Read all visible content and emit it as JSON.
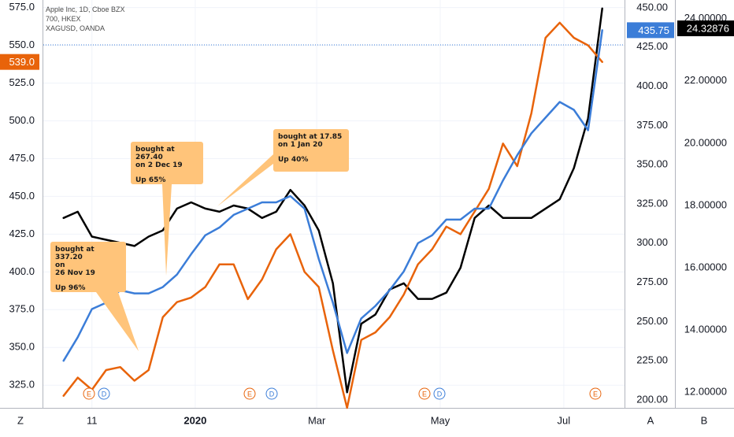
{
  "legend": {
    "line1": "Apple Inc, 1D, Cboe BZX",
    "line2": "700, HKEX",
    "line3": "XAGUSD, OANDA"
  },
  "colors": {
    "apple": "#e8630a",
    "hk700": "#3b7dd8",
    "xagusd": "#000000",
    "callout_bg": "#ffc47a"
  },
  "left_axis": {
    "ticks": [
      "575.0",
      "550.0",
      "525.0",
      "500.0",
      "475.0",
      "450.0",
      "425.0",
      "400.0",
      "375.0",
      "350.0",
      "325.0"
    ],
    "last_label": "539.0"
  },
  "mid_axis": {
    "ticks": [
      "450.00",
      "425.00",
      "400.00",
      "375.00",
      "350.00",
      "325.00",
      "300.00",
      "275.00",
      "250.00",
      "225.00",
      "200.00"
    ],
    "last_label": "435.75"
  },
  "right_axis": {
    "ticks": [
      "24.00000",
      "22.00000",
      "20.00000",
      "18.00000",
      "16.00000",
      "14.00000",
      "12.00000"
    ],
    "last_label": "24.32876"
  },
  "x_axis": {
    "labels": [
      "11",
      "2020",
      "Mar",
      "May",
      "Jul"
    ]
  },
  "bottom_buttons": {
    "left": "Z",
    "mid": "A",
    "right": "B"
  },
  "event_markers": [
    "E",
    "D",
    "E",
    "D",
    "E",
    "D",
    "E"
  ],
  "callouts": [
    {
      "line1": "bought at 337.20",
      "line2": "on",
      "line3": "26 Nov 19",
      "up": "Up 96%"
    },
    {
      "line1": "bought at 267.40",
      "line2": "on 2 Dec 19",
      "line3": "",
      "up": "Up 65%"
    },
    {
      "line1": "bought at 17.85",
      "line2": "on 1 Jan 20",
      "line3": "",
      "up": "Up 40%"
    }
  ],
  "chart_data": {
    "type": "line",
    "series": [
      {
        "name": "Apple Inc",
        "axis": "left",
        "x": [
          "2019-10-28",
          "2019-11-04",
          "2019-11-11",
          "2019-11-18",
          "2019-11-25",
          "2019-12-02",
          "2019-12-09",
          "2019-12-16",
          "2019-12-23",
          "2019-12-30",
          "2020-01-06",
          "2020-01-13",
          "2020-01-20",
          "2020-01-27",
          "2020-02-03",
          "2020-02-10",
          "2020-02-17",
          "2020-02-24",
          "2020-03-02",
          "2020-03-09",
          "2020-03-16",
          "2020-03-23",
          "2020-03-30",
          "2020-04-06",
          "2020-04-13",
          "2020-04-20",
          "2020-04-27",
          "2020-05-04",
          "2020-05-11",
          "2020-05-18",
          "2020-05-25",
          "2020-06-01",
          "2020-06-08",
          "2020-06-15",
          "2020-06-22",
          "2020-06-29",
          "2020-07-06",
          "2020-07-13",
          "2020-07-20"
        ],
        "values": [
          318,
          330,
          322,
          335,
          337,
          328,
          335,
          370,
          380,
          383,
          390,
          405,
          405,
          382,
          395,
          415,
          425,
          400,
          390,
          348,
          310,
          355,
          360,
          370,
          385,
          405,
          415,
          430,
          425,
          440,
          455,
          485,
          470,
          505,
          555,
          565,
          555,
          550,
          539
        ]
      },
      {
        "name": "700, HKEX",
        "axis": "mid",
        "x": [
          "2019-10-28",
          "2019-11-04",
          "2019-11-11",
          "2019-11-18",
          "2019-11-25",
          "2019-12-02",
          "2019-12-09",
          "2019-12-16",
          "2019-12-23",
          "2019-12-30",
          "2020-01-06",
          "2020-01-13",
          "2020-01-20",
          "2020-01-27",
          "2020-02-03",
          "2020-02-10",
          "2020-02-17",
          "2020-02-24",
          "2020-03-02",
          "2020-03-09",
          "2020-03-16",
          "2020-03-23",
          "2020-03-30",
          "2020-04-06",
          "2020-04-13",
          "2020-04-20",
          "2020-04-27",
          "2020-05-04",
          "2020-05-11",
          "2020-05-18",
          "2020-05-25",
          "2020-06-01",
          "2020-06-08",
          "2020-06-15",
          "2020-06-22",
          "2020-06-29",
          "2020-07-06",
          "2020-07-13",
          "2020-07-20"
        ],
        "values": [
          225,
          240,
          258,
          262,
          270,
          268,
          268,
          272,
          280,
          293,
          305,
          310,
          318,
          322,
          326,
          326,
          330,
          322,
          290,
          262,
          230,
          252,
          260,
          270,
          282,
          300,
          305,
          315,
          315,
          322,
          322,
          340,
          356,
          370,
          380,
          390,
          385,
          372,
          435.75
        ]
      },
      {
        "name": "XAGUSD, OANDA",
        "axis": "right",
        "x": [
          "2019-10-28",
          "2019-11-04",
          "2019-11-11",
          "2019-11-18",
          "2019-11-25",
          "2019-12-02",
          "2019-12-09",
          "2019-12-16",
          "2019-12-23",
          "2019-12-30",
          "2020-01-06",
          "2020-01-13",
          "2020-01-20",
          "2020-01-27",
          "2020-02-03",
          "2020-02-10",
          "2020-02-17",
          "2020-02-24",
          "2020-03-02",
          "2020-03-09",
          "2020-03-16",
          "2020-03-23",
          "2020-03-30",
          "2020-04-06",
          "2020-04-13",
          "2020-04-20",
          "2020-04-27",
          "2020-05-04",
          "2020-05-11",
          "2020-05-18",
          "2020-05-25",
          "2020-06-01",
          "2020-06-08",
          "2020-06-15",
          "2020-06-22",
          "2020-06-29",
          "2020-07-06",
          "2020-07-13",
          "2020-07-20"
        ],
        "values": [
          17.6,
          17.8,
          17.0,
          16.9,
          16.8,
          16.7,
          17.0,
          17.2,
          17.9,
          18.1,
          17.9,
          17.8,
          18.0,
          17.9,
          17.6,
          17.8,
          18.5,
          18.0,
          17.2,
          15.5,
          12.0,
          14.2,
          14.5,
          15.3,
          15.5,
          15.0,
          15.0,
          15.2,
          16.0,
          17.6,
          18.0,
          17.6,
          17.6,
          17.6,
          17.9,
          18.2,
          19.2,
          20.8,
          24.32876
        ]
      }
    ],
    "left_ylim": [
      310,
      580
    ],
    "mid_ylim": [
      195,
      455
    ],
    "right_ylim": [
      11.5,
      24.6
    ],
    "x_range": [
      "2019-10-18",
      "2020-07-31"
    ],
    "grid": true,
    "legend": "top-left"
  }
}
